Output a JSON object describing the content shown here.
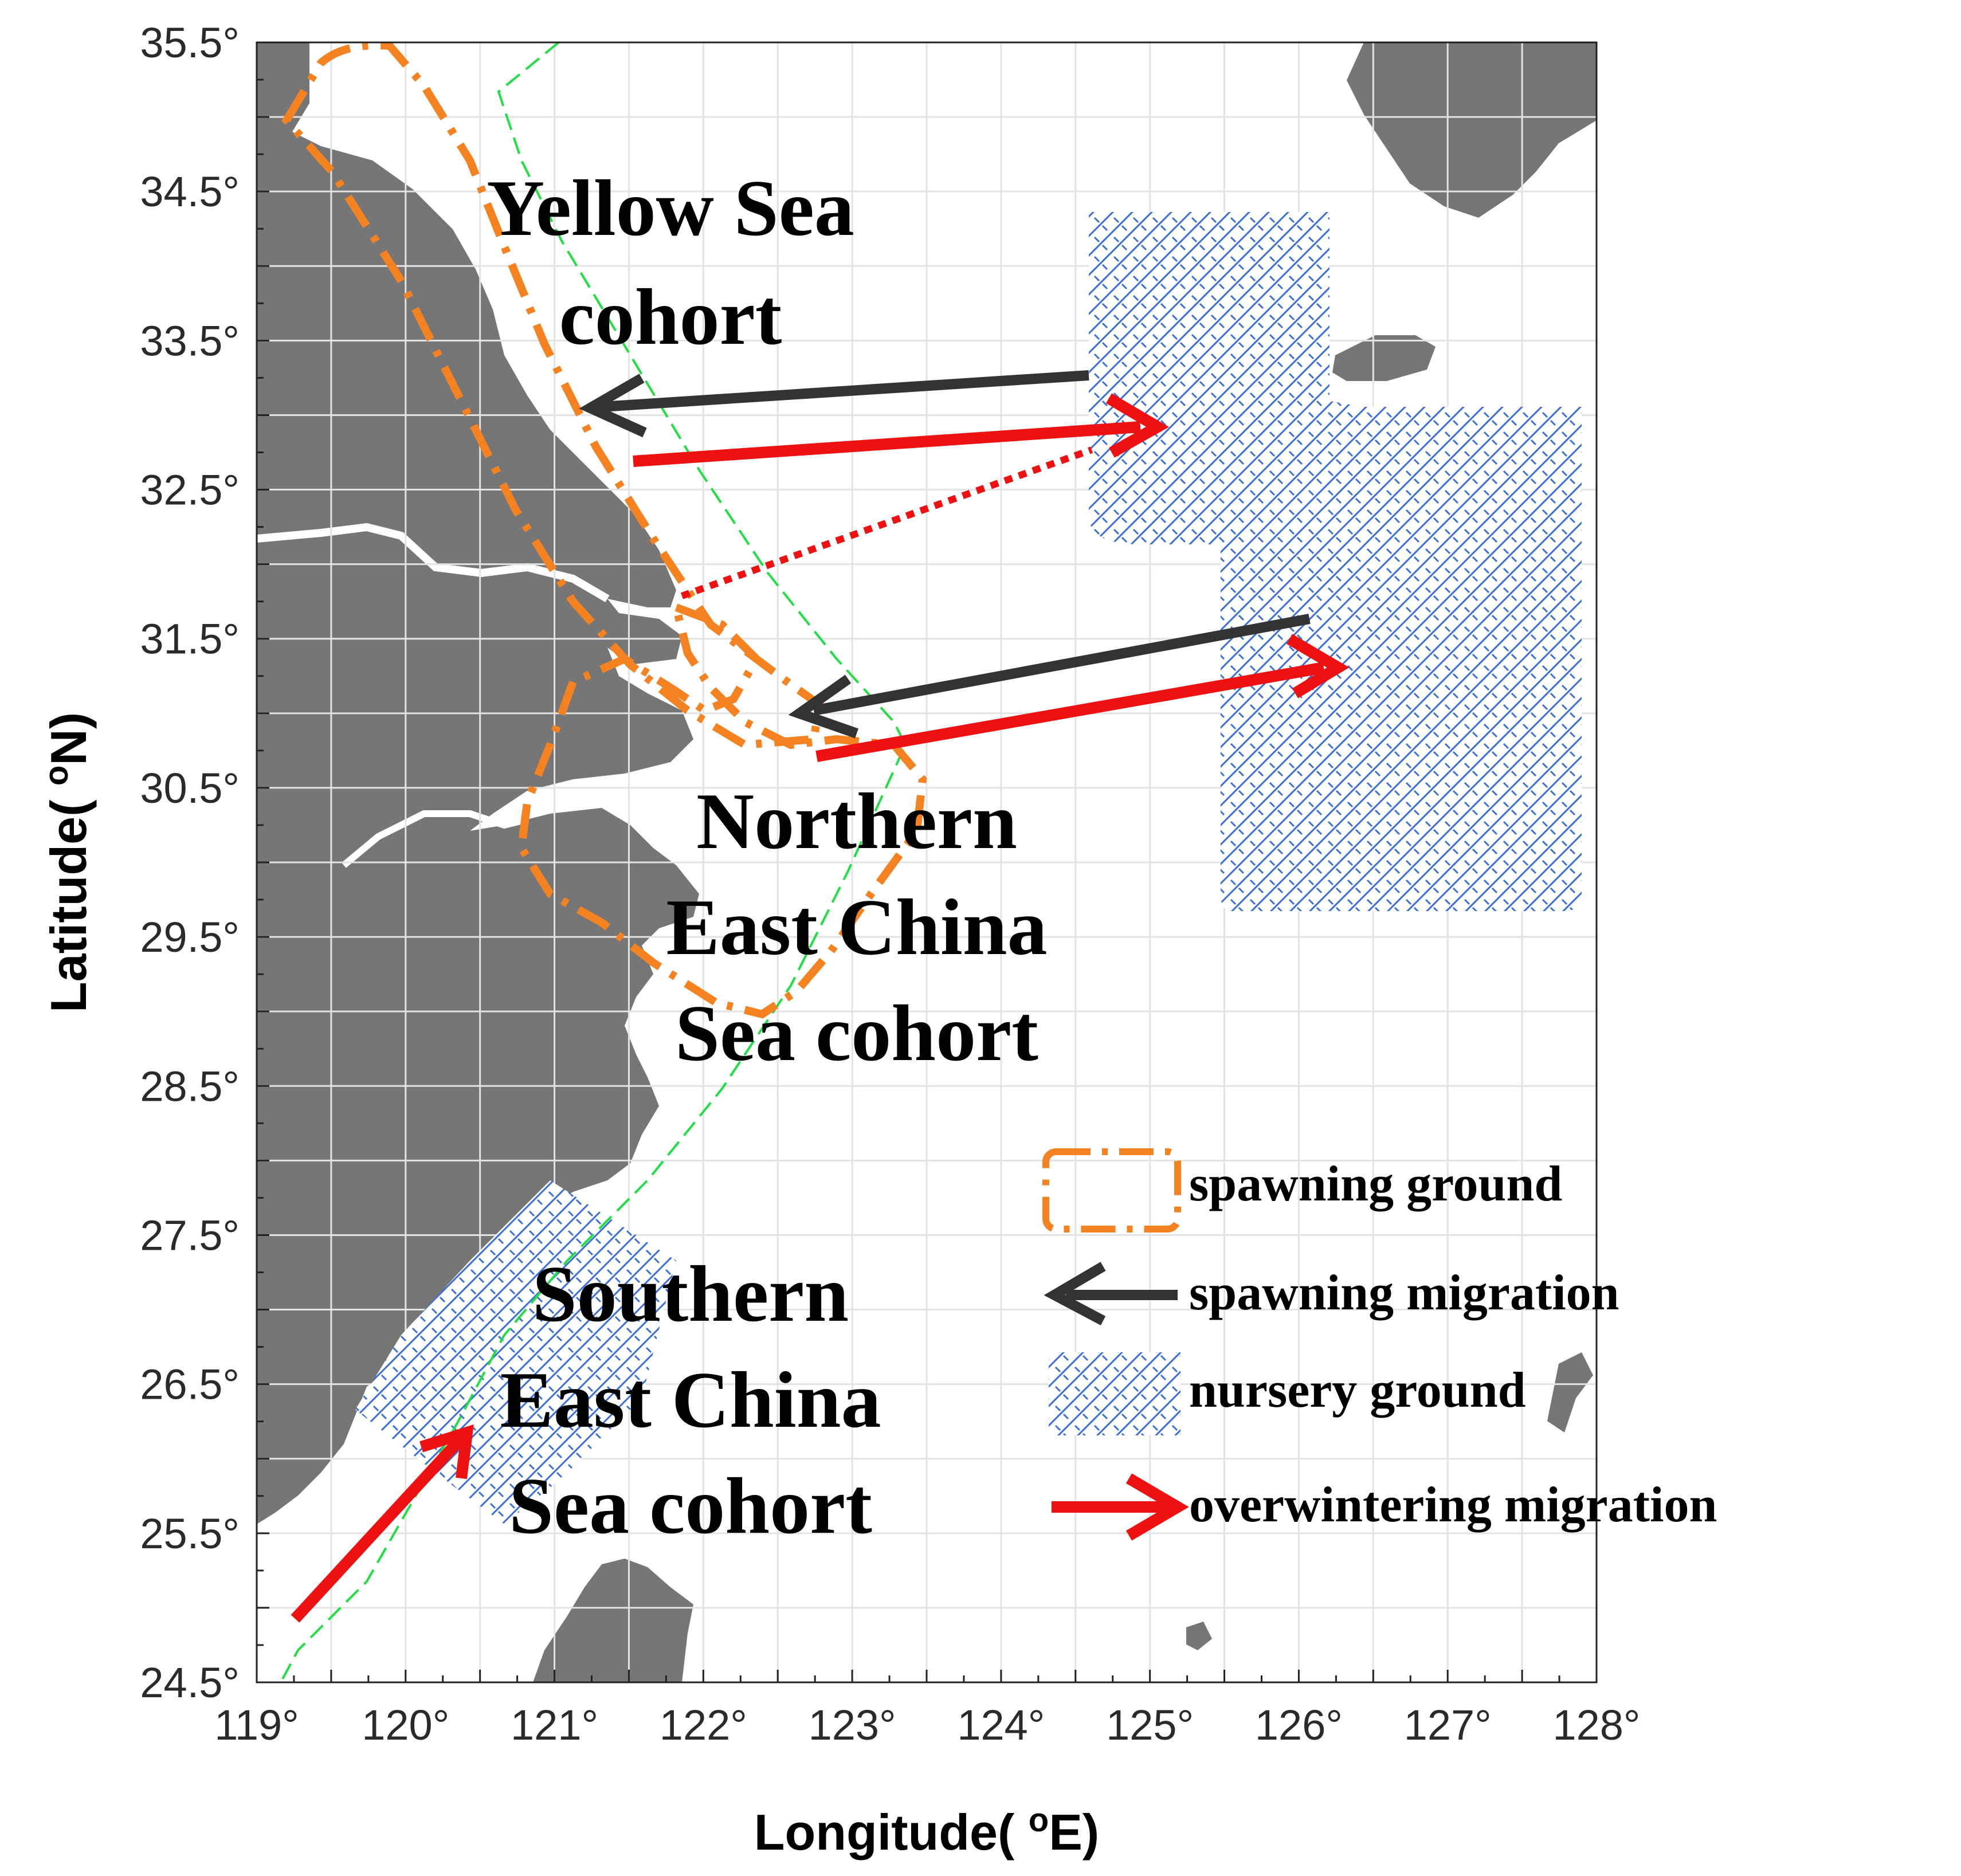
{
  "map": {
    "axes": {
      "xlabel": "Longitude(oE)",
      "ylabel": "Latitude(oN)",
      "lon_range": [
        119,
        128
      ],
      "lat_range": [
        24.5,
        35.5
      ],
      "x_ticks": [
        "119°",
        "120°",
        "121°",
        "122°",
        "123°",
        "124°",
        "125°",
        "126°",
        "127°",
        "128°"
      ],
      "y_ticks": [
        "35.5°",
        "34.5°",
        "33.5°",
        "32.5°",
        "31.5°",
        "30.5°",
        "29.5°",
        "28.5°",
        "27.5°",
        "26.5°",
        "25.5°",
        "24.5°"
      ],
      "grid": true
    },
    "region_labels": {
      "yellow_sea": [
        "Yellow Sea",
        "cohort"
      ],
      "northern_ecs": [
        "Northern",
        "East China",
        "Sea cohort"
      ],
      "southern_ecs": [
        "Southern",
        "East China",
        "Sea cohort"
      ]
    },
    "legend": {
      "placement": "bottom-right",
      "items": [
        {
          "key": "spawning-ground",
          "label": "spawning ground",
          "color": "#f58220"
        },
        {
          "key": "spawning-migration",
          "label": "spawning migration",
          "color": "#333333"
        },
        {
          "key": "nursery-ground",
          "label": "nursery ground",
          "color": "#3a6fd8"
        },
        {
          "key": "overwintering-migration",
          "label": "overwintering migration",
          "color": "#ee1111"
        }
      ]
    },
    "colors": {
      "land": "#767676",
      "grid": "#e3e3e3",
      "isobath": "#22dd44",
      "spawning_ground": "#f58220",
      "spawning_migration": "#333333",
      "nursery_ground": "#3a6fd8",
      "overwintering_migration": "#ee1111"
    }
  }
}
